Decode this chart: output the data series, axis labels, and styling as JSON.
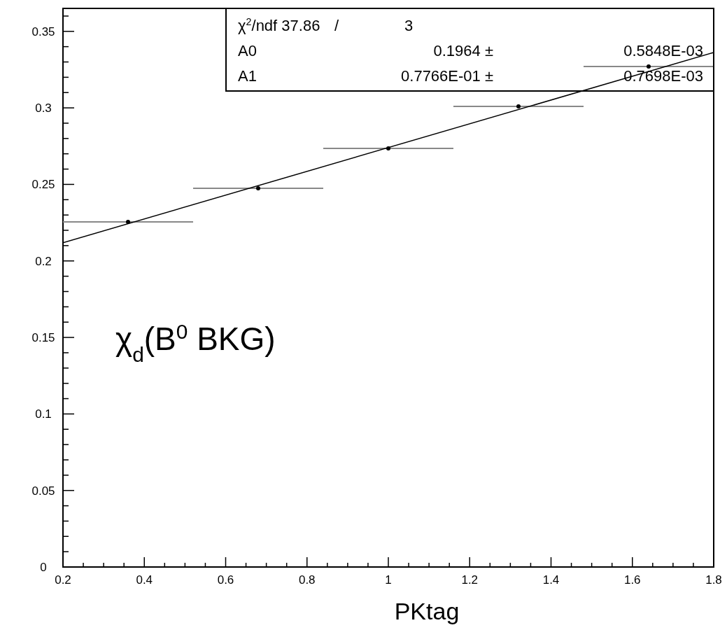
{
  "chart_data": {
    "type": "scatter",
    "xlabel": "PKtag",
    "xlim": [
      0.2,
      1.8
    ],
    "xticks": [
      0.2,
      {
        "value": 0.25,
        "label": null
      },
      {
        "value": 0.3,
        "label": null
      },
      {
        "value": 0.35,
        "label": null
      },
      0.4,
      {
        "value": 0.45,
        "label": null
      },
      {
        "value": 0.5,
        "label": null
      },
      {
        "value": 0.55,
        "label": null
      },
      0.6,
      {
        "value": 0.65,
        "label": null
      },
      {
        "value": 0.7,
        "label": null
      },
      {
        "value": 0.75,
        "label": null
      },
      0.8,
      {
        "value": 0.85,
        "label": null
      },
      {
        "value": 0.9,
        "label": null
      },
      {
        "value": 0.95,
        "label": null
      },
      1,
      {
        "value": 1.05,
        "label": null
      },
      {
        "value": 1.1,
        "label": null
      },
      {
        "value": 1.15,
        "label": null
      },
      1.2,
      {
        "value": 1.25,
        "label": null
      },
      {
        "value": 1.3,
        "label": null
      },
      {
        "value": 1.35,
        "label": null
      },
      1.4,
      {
        "value": 1.45,
        "label": null
      },
      {
        "value": 1.5,
        "label": null
      },
      {
        "value": 1.55,
        "label": null
      },
      1.6,
      {
        "value": 1.65,
        "label": null
      },
      {
        "value": 1.7,
        "label": null
      },
      {
        "value": 1.75,
        "label": null
      },
      1.8
    ],
    "ylim": [
      0,
      0.365
    ],
    "yticks": [
      0,
      {
        "value": 0.01,
        "label": null
      },
      {
        "value": 0.02,
        "label": null
      },
      {
        "value": 0.03,
        "label": null
      },
      {
        "value": 0.04,
        "label": null
      },
      0.05,
      {
        "value": 0.06,
        "label": null
      },
      {
        "value": 0.07,
        "label": null
      },
      {
        "value": 0.08,
        "label": null
      },
      {
        "value": 0.09,
        "label": null
      },
      0.1,
      {
        "value": 0.11,
        "label": null
      },
      {
        "value": 0.12,
        "label": null
      },
      {
        "value": 0.13,
        "label": null
      },
      {
        "value": 0.14,
        "label": null
      },
      0.15,
      {
        "value": 0.16,
        "label": null
      },
      {
        "value": 0.17,
        "label": null
      },
      {
        "value": 0.18,
        "label": null
      },
      {
        "value": 0.19,
        "label": null
      },
      0.2,
      {
        "value": 0.21,
        "label": null
      },
      {
        "value": 0.22,
        "label": null
      },
      {
        "value": 0.23,
        "label": null
      },
      {
        "value": 0.24,
        "label": null
      },
      0.25,
      {
        "value": 0.26,
        "label": null
      },
      {
        "value": 0.27,
        "label": null
      },
      {
        "value": 0.28,
        "label": null
      },
      {
        "value": 0.29,
        "label": null
      },
      0.3,
      {
        "value": 0.31,
        "label": null
      },
      {
        "value": 0.32,
        "label": null
      },
      {
        "value": 0.33,
        "label": null
      },
      {
        "value": 0.34,
        "label": null
      },
      0.35,
      {
        "value": 0.36,
        "label": null
      }
    ],
    "grid": false,
    "series": [
      {
        "marker": "circle",
        "color": "#000000",
        "x": [
          0.36,
          0.68,
          1.0,
          1.32,
          1.64
        ],
        "values": [
          0.2255,
          0.2475,
          0.2735,
          0.301,
          0.327
        ],
        "xerrors": [
          0.16,
          0.16,
          0.16,
          0.16,
          0.16
        ]
      },
      {
        "type": "line",
        "color": "#000000",
        "x": [
          0.2,
          1.8
        ],
        "values": [
          0.2119,
          0.3362
        ],
        "line_style": "solid"
      }
    ],
    "annotations": [
      "χ$^{2}$/ndf 37.86   /   3",
      "A0   0.1964 ±  0.5848E-03",
      "A1   0.7766E-01 ±  0.7698E-03",
      "χ$_{d}$(B$^{0}$ BKG)"
    ]
  }
}
